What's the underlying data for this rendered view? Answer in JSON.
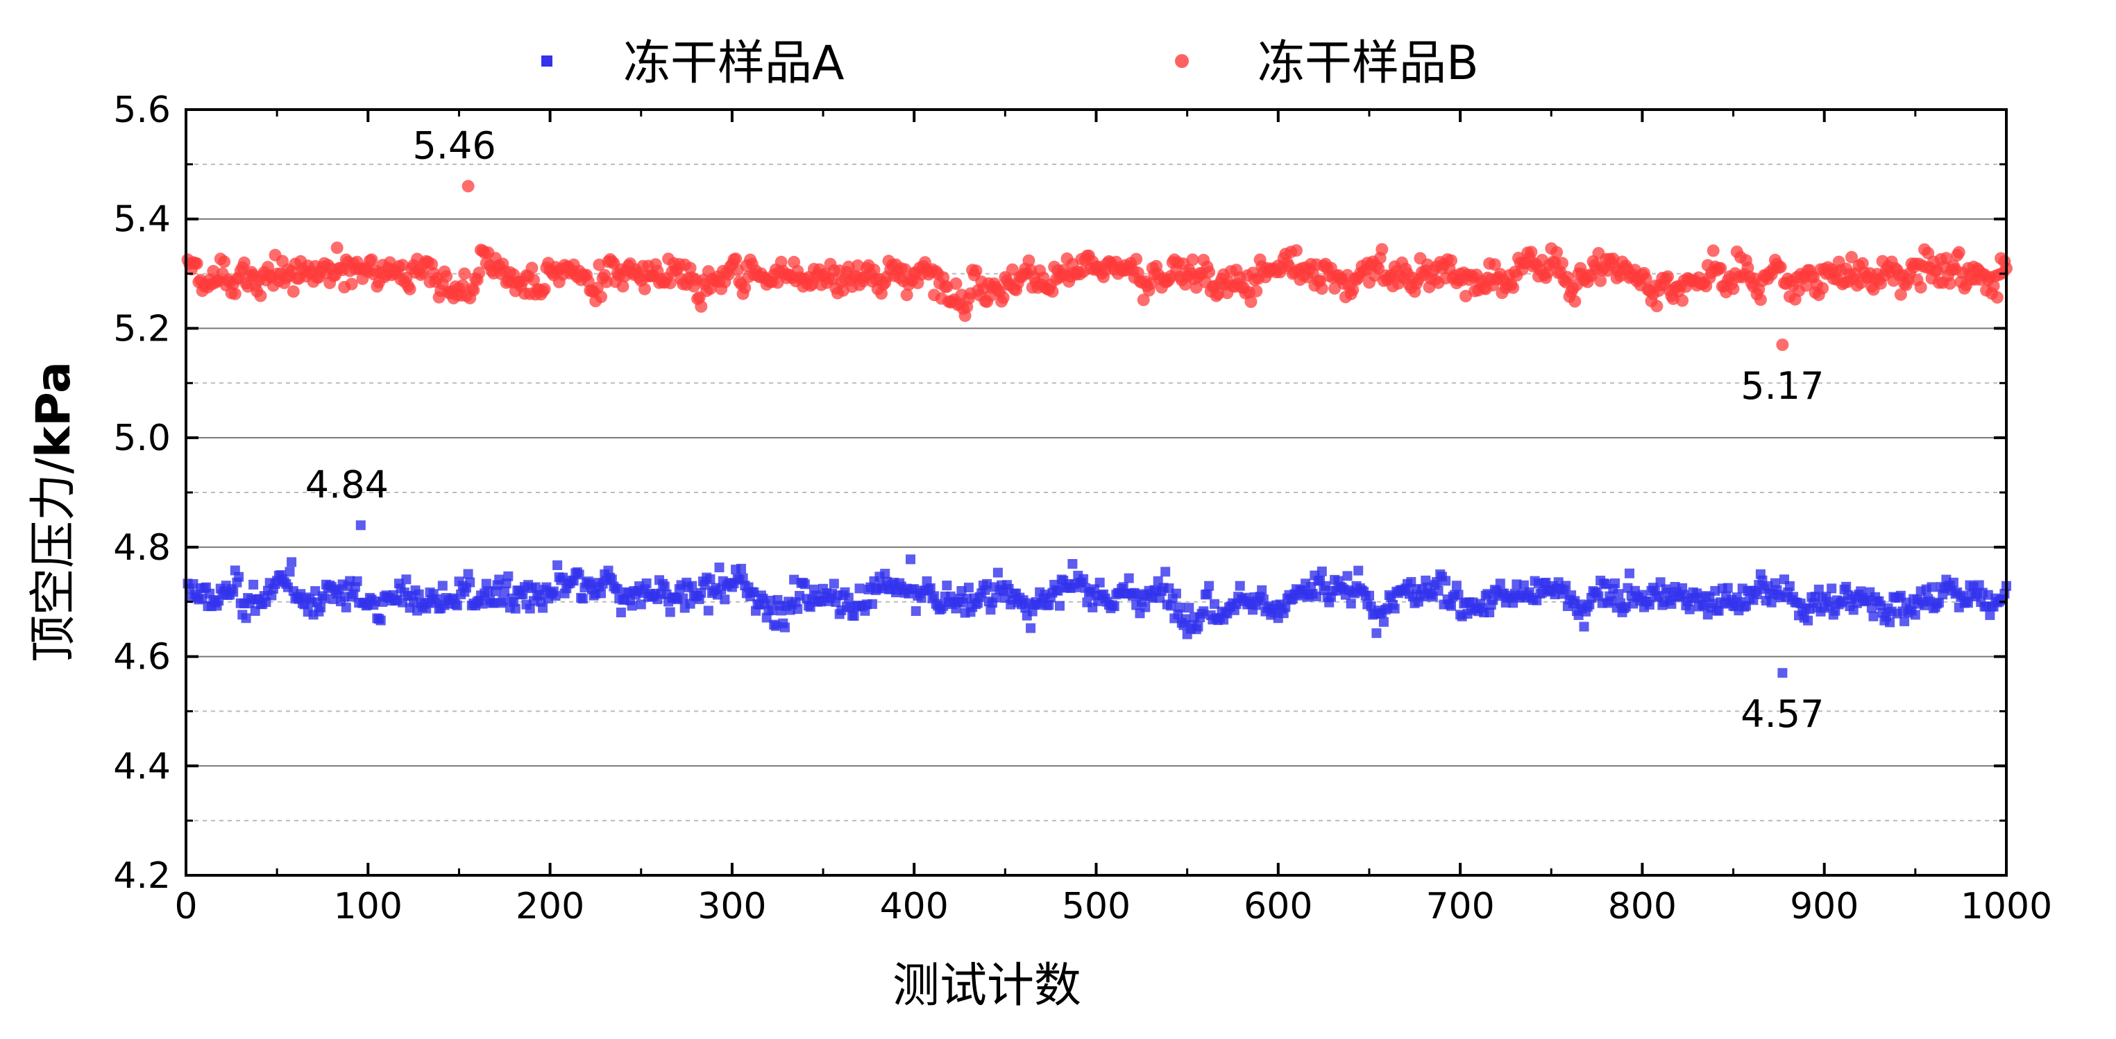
{
  "chart_data": {
    "type": "scatter",
    "title": "",
    "xlabel": "测试计数",
    "ylabel_prefix": "顶空压力/",
    "ylabel_unit": "kPa",
    "xlim": [
      0,
      1000
    ],
    "ylim": [
      4.2,
      5.6
    ],
    "xticks": [
      0,
      100,
      200,
      300,
      400,
      500,
      600,
      700,
      800,
      900,
      1000
    ],
    "xtick_labels": [
      "0",
      "100",
      "200",
      "300",
      "400",
      "500",
      "600",
      "700",
      "800",
      "900",
      "1000"
    ],
    "yticks": [
      4.2,
      4.4,
      4.6,
      4.8,
      5.0,
      5.2,
      5.4,
      5.6
    ],
    "ytick_labels": [
      "4.2",
      "4.4",
      "4.6",
      "4.8",
      "5.0",
      "5.2",
      "5.4",
      "5.6"
    ],
    "grid": {
      "major": true,
      "minor_dashed": true
    },
    "legend_position": "top-center",
    "series": [
      {
        "name": "冻干样品A",
        "marker": "square",
        "color": "#3333ee",
        "n_points": 1000,
        "mean": 4.71,
        "max": 4.84,
        "min": 4.57
      },
      {
        "name": "冻干样品B",
        "marker": "circle",
        "color": "#ff3b3b",
        "n_points": 1000,
        "mean": 5.3,
        "max": 5.46,
        "min": 5.17
      }
    ],
    "annotations": [
      {
        "text": "5.46",
        "x": 155,
        "y": 5.46
      },
      {
        "text": "5.17",
        "x": 877,
        "y": 5.17
      },
      {
        "text": "4.84",
        "x": 96,
        "y": 4.84
      },
      {
        "text": "4.57",
        "x": 877,
        "y": 4.57
      }
    ]
  }
}
